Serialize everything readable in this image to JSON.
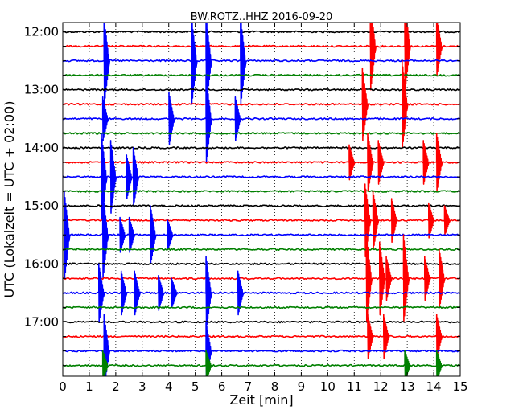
{
  "chart_data": {
    "type": "line",
    "title": "BW.ROTZ..HHZ 2016-09-20",
    "xlabel": "Zeit  [min]",
    "ylabel": "UTC (Lokalzeit = UTC + 02:00)",
    "xlim": [
      0,
      15
    ],
    "x_ticks": [
      0,
      1,
      2,
      3,
      4,
      5,
      6,
      7,
      8,
      9,
      10,
      11,
      12,
      13,
      14,
      15
    ],
    "y_tick_labels": [
      "12:00",
      "13:00",
      "14:00",
      "15:00",
      "16:00",
      "17:00"
    ],
    "trace_interval_minutes": 15,
    "first_trace": "12:00",
    "last_trace": "17:45",
    "grid": true,
    "colors": [
      "#000000",
      "#ff0000",
      "#0000ff",
      "#008000"
    ],
    "series": [
      {
        "start": "12:00",
        "color": "#000000",
        "events": []
      },
      {
        "start": "12:15",
        "color": "#ff0000",
        "events": [
          {
            "t": 11.7,
            "amp": 3.0
          },
          {
            "t": 13.0,
            "amp": 3.0
          },
          {
            "t": 14.2,
            "amp": 2.0
          }
        ]
      },
      {
        "start": "12:30",
        "color": "#0000ff",
        "events": [
          {
            "t": 1.65,
            "amp": 3.0
          },
          {
            "t": 4.95,
            "amp": 3.0
          },
          {
            "t": 5.5,
            "amp": 3.0
          },
          {
            "t": 6.8,
            "amp": 3.0
          }
        ]
      },
      {
        "start": "12:45",
        "color": "#008000",
        "events": []
      },
      {
        "start": "13:00",
        "color": "#000000",
        "events": []
      },
      {
        "start": "13:15",
        "color": "#ff0000",
        "events": [
          {
            "t": 11.4,
            "amp": 2.5
          },
          {
            "t": 12.9,
            "amp": 3.0
          }
        ]
      },
      {
        "start": "13:30",
        "color": "#0000ff",
        "events": [
          {
            "t": 1.6,
            "amp": 1.5
          },
          {
            "t": 4.1,
            "amp": 1.8
          },
          {
            "t": 5.5,
            "amp": 3.0
          },
          {
            "t": 6.6,
            "amp": 1.5
          }
        ]
      },
      {
        "start": "13:45",
        "color": "#008000",
        "events": []
      },
      {
        "start": "14:00",
        "color": "#000000",
        "events": []
      },
      {
        "start": "14:15",
        "color": "#ff0000",
        "events": [
          {
            "t": 10.9,
            "amp": 1.2
          },
          {
            "t": 11.6,
            "amp": 2.0
          },
          {
            "t": 12.0,
            "amp": 1.5
          },
          {
            "t": 13.7,
            "amp": 1.5
          },
          {
            "t": 14.2,
            "amp": 2.0
          }
        ]
      },
      {
        "start": "14:30",
        "color": "#0000ff",
        "events": [
          {
            "t": 1.55,
            "amp": 3.0
          },
          {
            "t": 1.9,
            "amp": 2.5
          },
          {
            "t": 2.5,
            "amp": 1.5
          },
          {
            "t": 2.75,
            "amp": 2.0
          }
        ]
      },
      {
        "start": "14:45",
        "color": "#008000",
        "events": []
      },
      {
        "start": "15:00",
        "color": "#000000",
        "events": []
      },
      {
        "start": "15:15",
        "color": "#ff0000",
        "events": [
          {
            "t": 11.5,
            "amp": 2.5
          },
          {
            "t": 11.8,
            "amp": 2.0
          },
          {
            "t": 12.5,
            "amp": 1.5
          },
          {
            "t": 13.9,
            "amp": 1.2
          },
          {
            "t": 14.5,
            "amp": 1.0
          }
        ]
      },
      {
        "start": "15:30",
        "color": "#0000ff",
        "events": [
          {
            "t": 0.15,
            "amp": 3.0
          },
          {
            "t": 1.6,
            "amp": 3.0
          },
          {
            "t": 2.25,
            "amp": 1.2
          },
          {
            "t": 2.6,
            "amp": 1.2
          },
          {
            "t": 3.4,
            "amp": 2.0
          },
          {
            "t": 4.05,
            "amp": 1.0
          }
        ]
      },
      {
        "start": "15:45",
        "color": "#008000",
        "events": []
      },
      {
        "start": "16:00",
        "color": "#000000",
        "events": []
      },
      {
        "start": "16:15",
        "color": "#ff0000",
        "events": [
          {
            "t": 11.55,
            "amp": 3.0
          },
          {
            "t": 12.05,
            "amp": 2.5
          },
          {
            "t": 12.3,
            "amp": 1.5
          },
          {
            "t": 12.95,
            "amp": 3.0
          },
          {
            "t": 13.75,
            "amp": 1.5
          },
          {
            "t": 14.3,
            "amp": 2.0
          }
        ]
      },
      {
        "start": "16:30",
        "color": "#0000ff",
        "events": [
          {
            "t": 1.45,
            "amp": 2.0
          },
          {
            "t": 2.3,
            "amp": 1.5
          },
          {
            "t": 2.8,
            "amp": 1.5
          },
          {
            "t": 3.7,
            "amp": 1.2
          },
          {
            "t": 4.2,
            "amp": 1.0
          },
          {
            "t": 5.5,
            "amp": 2.5
          },
          {
            "t": 6.7,
            "amp": 1.5
          }
        ]
      },
      {
        "start": "16:45",
        "color": "#008000",
        "events": []
      },
      {
        "start": "17:00",
        "color": "#000000",
        "events": []
      },
      {
        "start": "17:15",
        "color": "#ff0000",
        "events": [
          {
            "t": 11.6,
            "amp": 1.5
          },
          {
            "t": 12.2,
            "amp": 1.5
          },
          {
            "t": 14.2,
            "amp": 1.5
          }
        ]
      },
      {
        "start": "17:30",
        "color": "#0000ff",
        "events": [
          {
            "t": 1.65,
            "amp": 2.5
          },
          {
            "t": 5.5,
            "amp": 2.0
          }
        ]
      },
      {
        "start": "17:45",
        "color": "#008000",
        "events": [
          {
            "t": 1.6,
            "amp": 1.0
          },
          {
            "t": 5.5,
            "amp": 1.0
          },
          {
            "t": 13.0,
            "amp": 1.0
          },
          {
            "t": 14.2,
            "amp": 1.0
          }
        ]
      }
    ]
  }
}
